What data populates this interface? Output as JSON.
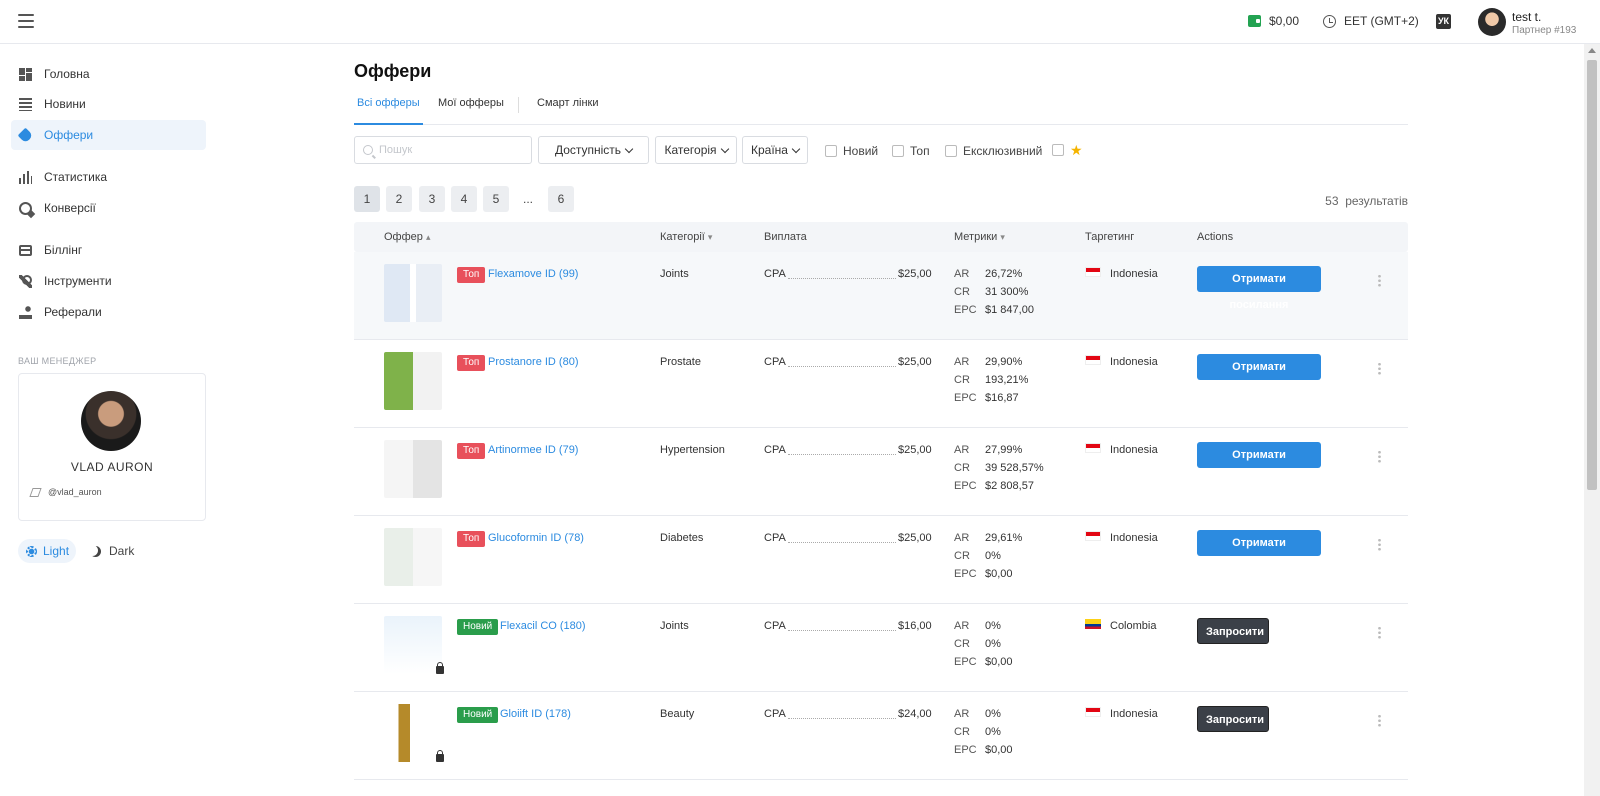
{
  "topbar": {
    "balance": "$0,00",
    "timezone": "EET (GMT+2)",
    "lang": "УК",
    "user_name": "test t.",
    "user_sub": "Партнер #193"
  },
  "sidebar": {
    "items": [
      {
        "label": "Головна",
        "icon": "dashboard-icon"
      },
      {
        "label": "Новини",
        "icon": "news-icon"
      },
      {
        "label": "Оффери",
        "icon": "tag-icon"
      },
      {
        "label": "Статистика",
        "icon": "bar-chart-icon"
      },
      {
        "label": "Конверсії",
        "icon": "target-icon"
      },
      {
        "label": "Біллінг",
        "icon": "credit-card-icon"
      },
      {
        "label": "Інструменти",
        "icon": "wrench-icon"
      },
      {
        "label": "Реферали",
        "icon": "referral-icon"
      }
    ],
    "manager_title": "ВАШ МЕНЕДЖЕР",
    "manager_name": "VLAD AURON",
    "manager_telegram": "@vlad_auron",
    "theme_light": "Light",
    "theme_dark": "Dark"
  },
  "main": {
    "title": "Оффери",
    "tabs": [
      "Всі офферы",
      "Мої офферы",
      "Смарт лінки"
    ],
    "search_placeholder": "Пошук",
    "dropdowns": [
      "Доступність",
      "Категорія",
      "Країна"
    ],
    "checkboxes": [
      "Новий",
      "Топ",
      "Ексклюзивний"
    ],
    "pages": [
      "1",
      "2",
      "3",
      "4",
      "5",
      "...",
      "6"
    ],
    "results_count": "53",
    "results_label": "результатів"
  },
  "table": {
    "headers": {
      "offer": "Оффер",
      "categories": "Категорії",
      "payout": "Виплата",
      "metrics": "Метрики",
      "targeting": "Таргетинг",
      "actions": "Actions"
    },
    "rows": [
      {
        "badge": "Топ",
        "badge_type": "top",
        "name": "Flexamove ID (99)",
        "category": "Joints",
        "payout_type": "CPA",
        "payout": "$25,00",
        "ar": "26,72%",
        "cr": "31 300%",
        "epc": "$1 847,00",
        "country": "Indonesia",
        "flag": "id",
        "action": "Отримати посилання",
        "action_type": "blue"
      },
      {
        "badge": "Топ",
        "badge_type": "top",
        "name": "Prostanore ID (80)",
        "category": "Prostate",
        "payout_type": "CPA",
        "payout": "$25,00",
        "ar": "29,90%",
        "cr": "193,21%",
        "epc": "$16,87",
        "country": "Indonesia",
        "flag": "id",
        "action": "Отримати посилання",
        "action_type": "blue"
      },
      {
        "badge": "Топ",
        "badge_type": "top",
        "name": "Artinormee ID (79)",
        "category": "Hypertension",
        "payout_type": "CPA",
        "payout": "$25,00",
        "ar": "27,99%",
        "cr": "39 528,57%",
        "epc": "$2 808,57",
        "country": "Indonesia",
        "flag": "id",
        "action": "Отримати посилання",
        "action_type": "blue"
      },
      {
        "badge": "Топ",
        "badge_type": "top",
        "name": "Glucoformin ID (78)",
        "category": "Diabetes",
        "payout_type": "CPA",
        "payout": "$25,00",
        "ar": "29,61%",
        "cr": "0%",
        "epc": "$0,00",
        "country": "Indonesia",
        "flag": "id",
        "action": "Отримати посилання",
        "action_type": "blue"
      },
      {
        "badge": "Новий",
        "badge_type": "new",
        "name": "Flexacil CO (180)",
        "category": "Joints",
        "payout_type": "CPA",
        "payout": "$16,00",
        "ar": "0%",
        "cr": "0%",
        "epc": "$0,00",
        "country": "Colombia",
        "flag": "co",
        "action": "Запросити",
        "action_type": "dark"
      },
      {
        "badge": "Новий",
        "badge_type": "new",
        "name": "Gloiift ID (178)",
        "category": "Beauty",
        "payout_type": "CPA",
        "payout": "$24,00",
        "ar": "0%",
        "cr": "0%",
        "epc": "$0,00",
        "country": "Indonesia",
        "flag": "id",
        "action": "Запросити",
        "action_type": "dark"
      }
    ],
    "metric_labels": {
      "ar": "AR",
      "cr": "CR",
      "epc": "EPC"
    }
  },
  "colors": {
    "accent": "#2c8be0",
    "top_badge": "#e8505b",
    "new_badge": "#2a9d4b",
    "dark_button": "#3b4048"
  }
}
